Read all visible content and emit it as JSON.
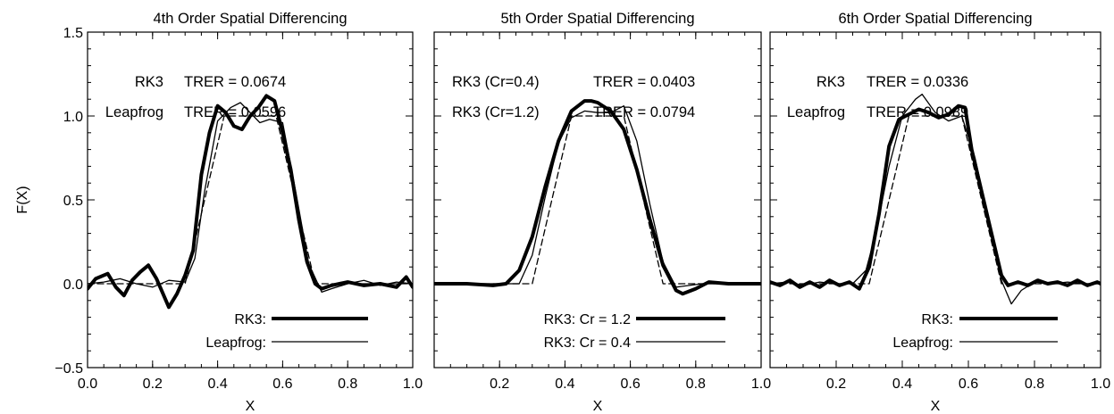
{
  "chart_data": [
    {
      "type": "line",
      "title": "4th Order Spatial Differencing",
      "xlabel": "X",
      "ylabel": "F(X)",
      "xlim": [
        0.0,
        1.0
      ],
      "ylim": [
        -0.5,
        1.5
      ],
      "xticks": [
        "0.0",
        "0.2",
        "0.4",
        "0.6",
        "0.8",
        "1.0"
      ],
      "xtick_values": [
        0.0,
        0.2,
        0.4,
        0.6,
        0.8,
        1.0
      ],
      "yticks": [
        "−0.5",
        "0.0",
        "0.5",
        "1.0",
        "1.5"
      ],
      "ytick_values": [
        -0.5,
        0.0,
        0.5,
        1.0,
        1.5
      ],
      "annotations": [
        {
          "method": "RK3",
          "metric": "TRER = 0.0674"
        },
        {
          "method": "Leapfrog",
          "metric": "TRER = 0.0596"
        }
      ],
      "legend": [
        {
          "label": "RK3:",
          "style": "thick"
        },
        {
          "label": "Leapfrog:",
          "style": "thin"
        }
      ],
      "series": [
        {
          "style": "dashed",
          "x": [
            0.0,
            0.3,
            0.42,
            0.58,
            0.7,
            1.0
          ],
          "values": [
            0.0,
            0.0,
            1.0,
            1.0,
            0.0,
            0.0
          ]
        },
        {
          "style": "thick",
          "x": [
            0.0,
            0.025,
            0.062,
            0.087,
            0.112,
            0.137,
            0.162,
            0.187,
            0.212,
            0.25,
            0.275,
            0.3,
            0.325,
            0.35,
            0.375,
            0.4,
            0.425,
            0.45,
            0.475,
            0.5,
            0.525,
            0.55,
            0.575,
            0.6,
            0.625,
            0.65,
            0.675,
            0.7,
            0.72,
            0.75,
            0.8,
            0.85,
            0.9,
            0.95,
            0.98,
            1.0
          ],
          "values": [
            -0.03,
            0.03,
            0.06,
            -0.02,
            -0.07,
            0.02,
            0.07,
            0.11,
            0.03,
            -0.14,
            -0.06,
            0.05,
            0.2,
            0.65,
            0.9,
            1.06,
            1.02,
            0.94,
            0.92,
            1.0,
            1.05,
            1.12,
            1.09,
            0.9,
            0.68,
            0.38,
            0.13,
            0.0,
            -0.03,
            -0.01,
            0.01,
            -0.01,
            0.0,
            -0.02,
            0.04,
            -0.02
          ]
        },
        {
          "style": "thin",
          "x": [
            0.0,
            0.05,
            0.1,
            0.15,
            0.2,
            0.25,
            0.3,
            0.33,
            0.36,
            0.4,
            0.44,
            0.47,
            0.5,
            0.53,
            0.56,
            0.6,
            0.64,
            0.68,
            0.72,
            0.75,
            0.8,
            0.85,
            0.9,
            0.95,
            1.0
          ],
          "values": [
            0.0,
            0.01,
            0.03,
            0.0,
            -0.02,
            0.02,
            0.01,
            0.15,
            0.55,
            0.97,
            1.05,
            1.08,
            1.02,
            0.96,
            0.98,
            0.96,
            0.55,
            0.12,
            -0.05,
            -0.03,
            0.0,
            0.02,
            -0.01,
            0.01,
            0.0
          ]
        }
      ]
    },
    {
      "type": "line",
      "title": "5th Order Spatial Differencing",
      "xlabel": "X",
      "ylabel": "",
      "xlim": [
        0.0,
        1.0
      ],
      "ylim": [
        -0.5,
        1.5
      ],
      "xticks": [
        "0.2",
        "0.4",
        "0.6",
        "0.8",
        "1.0"
      ],
      "xtick_values": [
        0.2,
        0.4,
        0.6,
        0.8,
        1.0
      ],
      "yticks": [],
      "ytick_values": [],
      "annotations": [
        {
          "method": "RK3 (Cr=0.4)",
          "metric": "TRER = 0.0403"
        },
        {
          "method": "RK3 (Cr=1.2)",
          "metric": "TRER = 0.0794"
        }
      ],
      "legend": [
        {
          "label": "RK3:   Cr = 1.2",
          "style": "thick"
        },
        {
          "label": "RK3:   Cr = 0.4",
          "style": "thin"
        }
      ],
      "series": [
        {
          "style": "dashed",
          "x": [
            0.0,
            0.3,
            0.42,
            0.58,
            0.7,
            1.0
          ],
          "values": [
            0.0,
            0.0,
            1.0,
            1.0,
            0.0,
            0.0
          ]
        },
        {
          "style": "thick",
          "x": [
            0.0,
            0.1,
            0.18,
            0.22,
            0.26,
            0.3,
            0.34,
            0.38,
            0.42,
            0.46,
            0.48,
            0.5,
            0.54,
            0.58,
            0.62,
            0.66,
            0.7,
            0.74,
            0.76,
            0.8,
            0.84,
            0.9,
            1.0
          ],
          "values": [
            0.0,
            0.0,
            -0.01,
            0.0,
            0.08,
            0.28,
            0.58,
            0.85,
            1.03,
            1.09,
            1.09,
            1.08,
            1.03,
            0.92,
            0.68,
            0.38,
            0.11,
            -0.04,
            -0.06,
            -0.03,
            0.01,
            0.0,
            0.0
          ]
        },
        {
          "style": "thin",
          "x": [
            0.0,
            0.2,
            0.26,
            0.3,
            0.34,
            0.38,
            0.42,
            0.46,
            0.5,
            0.54,
            0.58,
            0.62,
            0.66,
            0.7,
            0.74,
            0.78,
            0.82,
            0.88,
            1.0
          ],
          "values": [
            0.0,
            0.0,
            0.0,
            0.17,
            0.52,
            0.84,
            0.99,
            1.03,
            1.02,
            1.02,
            1.06,
            0.85,
            0.47,
            0.13,
            -0.02,
            -0.01,
            0.0,
            0.0,
            0.0
          ]
        }
      ]
    },
    {
      "type": "line",
      "title": "6th Order Spatial Differencing",
      "xlabel": "X",
      "ylabel": "",
      "xlim": [
        0.0,
        1.0
      ],
      "ylim": [
        -0.5,
        1.5
      ],
      "xticks": [
        "0.2",
        "0.4",
        "0.6",
        "0.8",
        "1.0"
      ],
      "xtick_values": [
        0.2,
        0.4,
        0.6,
        0.8,
        1.0
      ],
      "yticks": [],
      "ytick_values": [],
      "annotations": [
        {
          "method": "RK3",
          "metric": "TRER = 0.0336"
        },
        {
          "method": "Leapfrog",
          "metric": "TRER = 0.0989"
        }
      ],
      "legend": [
        {
          "label": "RK3:",
          "style": "thick"
        },
        {
          "label": "Leapfrog:",
          "style": "thin"
        }
      ],
      "series": [
        {
          "style": "dashed",
          "x": [
            0.0,
            0.3,
            0.42,
            0.58,
            0.7,
            1.0
          ],
          "values": [
            0.0,
            0.0,
            1.0,
            1.0,
            0.0,
            0.0
          ]
        },
        {
          "style": "thick",
          "x": [
            0.0,
            0.03,
            0.06,
            0.09,
            0.12,
            0.15,
            0.18,
            0.21,
            0.24,
            0.27,
            0.3,
            0.33,
            0.36,
            0.39,
            0.42,
            0.45,
            0.48,
            0.51,
            0.54,
            0.57,
            0.59,
            0.61,
            0.64,
            0.67,
            0.7,
            0.72,
            0.75,
            0.78,
            0.81,
            0.84,
            0.87,
            0.9,
            0.93,
            0.96,
            0.99,
            1.0
          ],
          "values": [
            0.01,
            -0.01,
            0.02,
            -0.02,
            0.01,
            -0.02,
            0.02,
            -0.01,
            0.01,
            -0.03,
            0.1,
            0.42,
            0.82,
            0.98,
            1.01,
            1.04,
            1.02,
            0.99,
            1.01,
            1.06,
            1.05,
            0.8,
            0.55,
            0.3,
            0.05,
            -0.01,
            0.01,
            -0.01,
            0.02,
            0.0,
            0.01,
            -0.01,
            0.02,
            -0.01,
            0.01,
            0.0
          ]
        },
        {
          "style": "thin",
          "x": [
            0.0,
            0.05,
            0.1,
            0.15,
            0.2,
            0.25,
            0.29,
            0.32,
            0.36,
            0.4,
            0.44,
            0.46,
            0.5,
            0.54,
            0.58,
            0.62,
            0.66,
            0.7,
            0.73,
            0.76,
            0.8,
            0.85,
            0.9,
            0.95,
            1.0
          ],
          "values": [
            0.0,
            0.01,
            -0.01,
            0.01,
            0.0,
            0.0,
            0.08,
            0.3,
            0.7,
            1.0,
            1.1,
            1.13,
            1.02,
            0.97,
            1.0,
            0.75,
            0.4,
            0.02,
            -0.12,
            -0.04,
            0.01,
            0.0,
            0.01,
            0.0,
            0.0
          ]
        }
      ]
    }
  ]
}
